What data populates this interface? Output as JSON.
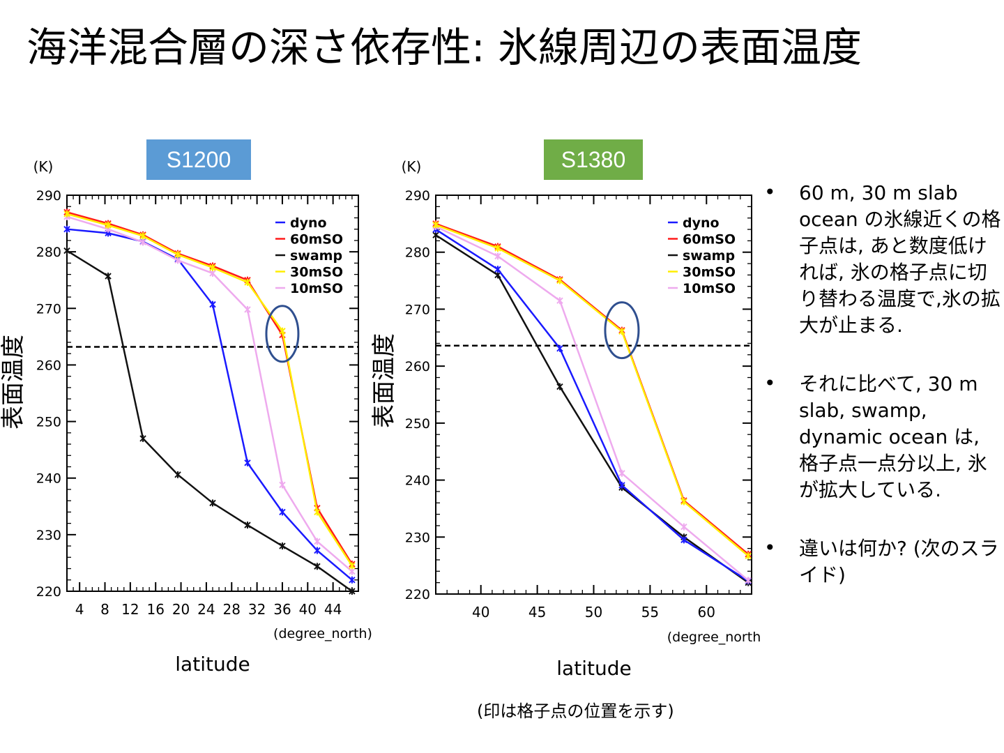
{
  "slide": {
    "title": "海洋混合層の深さ依存性: 氷線周辺の表面温度",
    "note": "(印は格子点の位置を示す)",
    "bullets": [
      "60 m, 30 m slab ocean の氷線近くの格子点は, あと数度低ければ, 氷の格子点に切り替わる温度で,氷の拡大が止まる.",
      "それに比べて, 30 m slab, swamp, dynamic ocean は, 格子点一点分以上, 氷が拡大している.",
      "違いは何か? (次のスライド)"
    ]
  },
  "colors": {
    "badge_left": "#5b9bd5",
    "badge_right": "#70ad47",
    "dyno": "#1a1aff",
    "60mSO": "#ff1a1a",
    "swamp": "#111111",
    "30mSO": "#ffee00",
    "10mSO": "#eeaaee",
    "highlight_circle": "#2f4f8f"
  },
  "chart_data": [
    {
      "type": "line",
      "badge": "S1200",
      "unit_label": "(K)",
      "ylabel": "表面温度",
      "xlabel": "latitude",
      "x_unit": "(degree_north)",
      "xlim": [
        2,
        48
      ],
      "ylim": [
        220,
        290
      ],
      "xticks": [
        4,
        8,
        12,
        16,
        20,
        24,
        28,
        32,
        36,
        40,
        44
      ],
      "yticks": [
        220,
        230,
        240,
        250,
        260,
        270,
        280,
        290
      ],
      "reference_line": 263.2,
      "highlight": {
        "x": 36,
        "y": 265.5
      },
      "legend_position": "top-right",
      "series": [
        {
          "name": "dyno",
          "color_key": "dyno",
          "x": [
            2,
            8.5,
            14,
            19.5,
            25,
            30.5,
            36,
            41.5,
            47
          ],
          "y": [
            284,
            283.3,
            281.8,
            278.7,
            270.7,
            242.7,
            234,
            227.2,
            222
          ]
        },
        {
          "name": "60mSO",
          "color_key": "60mSO",
          "x": [
            2,
            8.5,
            14,
            19.5,
            25,
            30.5,
            36,
            41.5,
            47
          ],
          "y": [
            287,
            285,
            283,
            279.7,
            277.5,
            275,
            265.3,
            234.7,
            224.8
          ]
        },
        {
          "name": "swamp",
          "color_key": "swamp",
          "x": [
            2,
            8.5,
            14,
            19.5,
            25,
            30.5,
            36,
            41.5,
            47
          ],
          "y": [
            280.2,
            275.7,
            247,
            240.6,
            235.6,
            231.7,
            228,
            224.4,
            220
          ]
        },
        {
          "name": "30mSO",
          "color_key": "30mSO",
          "x": [
            2,
            8.5,
            14,
            19.5,
            25,
            30.5,
            36,
            41.5,
            47
          ],
          "y": [
            286.7,
            284.7,
            282.8,
            279.5,
            277.2,
            274.6,
            266,
            234,
            224.5
          ]
        },
        {
          "name": "10mSO",
          "color_key": "10mSO",
          "x": [
            2,
            8.5,
            14,
            19.5,
            25,
            30.5,
            36,
            41.5,
            47
          ],
          "y": [
            286.2,
            284,
            281.7,
            278.5,
            276.2,
            269.8,
            238.8,
            228.8,
            223.5
          ]
        }
      ]
    },
    {
      "type": "line",
      "badge": "S1380",
      "unit_label": "(K)",
      "ylabel": "表面温度",
      "xlabel": "latitude",
      "x_unit": "(degree_north",
      "xlim": [
        36,
        64
      ],
      "ylim": [
        220,
        290
      ],
      "xticks": [
        40,
        45,
        50,
        55,
        60
      ],
      "yticks": [
        220,
        230,
        240,
        250,
        260,
        270,
        280,
        290
      ],
      "reference_line": 263.6,
      "highlight": {
        "x": 52.5,
        "y": 266.3
      },
      "legend_position": "top-right",
      "series": [
        {
          "name": "dyno",
          "color_key": "dyno",
          "x": [
            36,
            41.5,
            47,
            52.5,
            58,
            63.7
          ],
          "y": [
            284,
            277,
            263.1,
            239.1,
            229.5,
            222.3
          ]
        },
        {
          "name": "60mSO",
          "color_key": "60mSO",
          "x": [
            36,
            41.5,
            47,
            52.5,
            58,
            63.7
          ],
          "y": [
            285,
            281,
            275.2,
            266.3,
            236.4,
            227
          ]
        },
        {
          "name": "swamp",
          "color_key": "swamp",
          "x": [
            36,
            41.5,
            47,
            52.5,
            58,
            63.7
          ],
          "y": [
            283,
            276,
            256.4,
            238.7,
            230,
            222
          ]
        },
        {
          "name": "30mSO",
          "color_key": "30mSO",
          "x": [
            36,
            41.5,
            47,
            52.5,
            58,
            63.7
          ],
          "y": [
            284.8,
            280.7,
            275,
            266.1,
            236.2,
            226.7
          ]
        },
        {
          "name": "10mSO",
          "color_key": "10mSO",
          "x": [
            36,
            41.5,
            47,
            52.5,
            58,
            63.7
          ],
          "y": [
            284.5,
            279.3,
            271.5,
            241.2,
            231.8,
            222.4
          ]
        }
      ]
    }
  ]
}
